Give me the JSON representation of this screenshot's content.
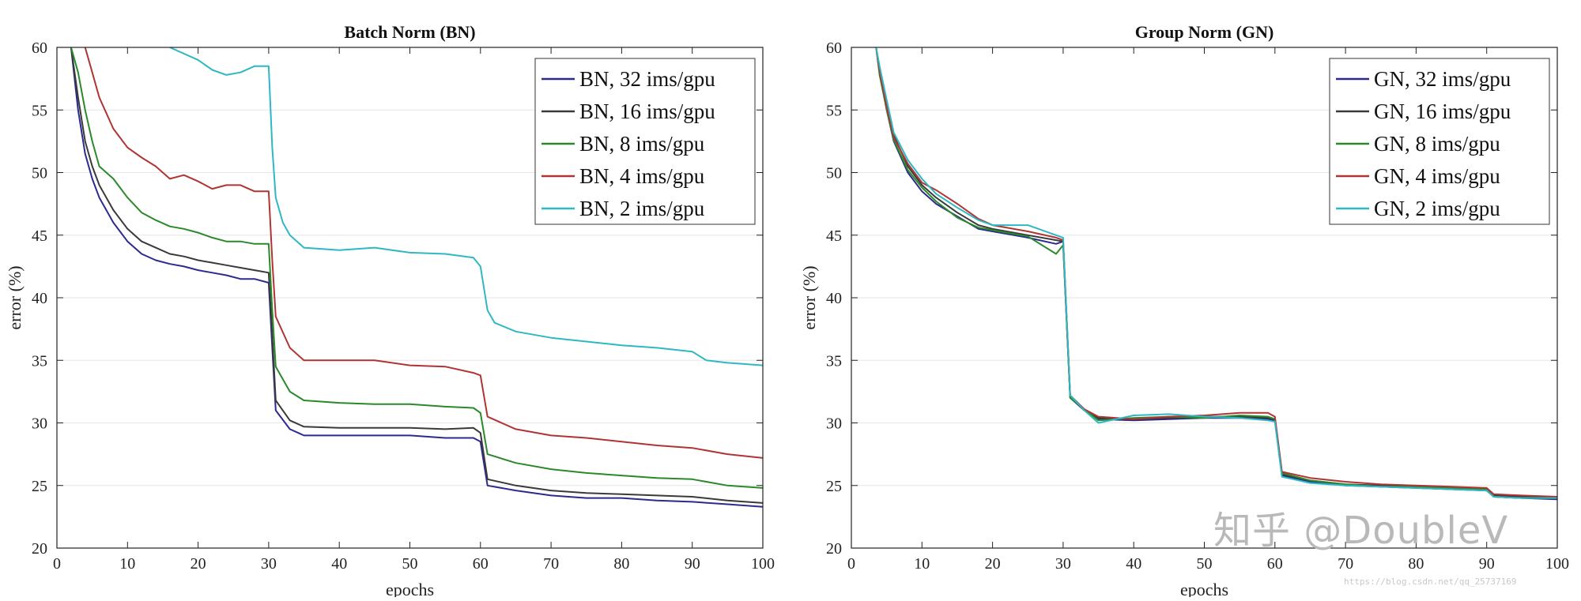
{
  "chart_data": [
    {
      "type": "line",
      "title": "Batch Norm (BN)",
      "xlabel": "epochs",
      "ylabel": "error (%)",
      "xlim": [
        0,
        100
      ],
      "ylim": [
        20,
        60
      ],
      "xticks": [
        "0",
        "10",
        "20",
        "30",
        "40",
        "50",
        "60",
        "70",
        "80",
        "90",
        "100"
      ],
      "yticks": [
        "20",
        "25",
        "30",
        "35",
        "40",
        "45",
        "50",
        "55",
        "60"
      ],
      "grid": "horizontal",
      "legend_position": "top-right",
      "series": [
        {
          "name": "BN, 32 ims/gpu",
          "color": "#2b2b8f",
          "x": [
            2,
            3,
            4,
            5,
            6,
            8,
            10,
            12,
            14,
            16,
            18,
            20,
            22,
            24,
            26,
            28,
            30,
            30.5,
            31,
            33,
            35,
            40,
            45,
            50,
            55,
            59,
            60,
            61,
            65,
            70,
            75,
            80,
            85,
            90,
            95,
            100
          ],
          "y": [
            60,
            55,
            51.5,
            49.5,
            48,
            46,
            44.5,
            43.5,
            43,
            42.7,
            42.5,
            42.2,
            42,
            41.8,
            41.5,
            41.5,
            41.2,
            36,
            31,
            29.5,
            29,
            29,
            29,
            29,
            28.8,
            28.8,
            28.5,
            25,
            24.6,
            24.2,
            24,
            24,
            23.8,
            23.7,
            23.5,
            23.3
          ]
        },
        {
          "name": "BN, 16 ims/gpu",
          "color": "#3a3a3a",
          "x": [
            2,
            3,
            4,
            5,
            6,
            8,
            10,
            12,
            14,
            16,
            18,
            20,
            22,
            24,
            26,
            28,
            30,
            30.5,
            31,
            33,
            35,
            40,
            45,
            50,
            55,
            59,
            60,
            61,
            65,
            70,
            75,
            80,
            85,
            90,
            95,
            100
          ],
          "y": [
            60,
            56,
            52.5,
            50.5,
            49,
            47,
            45.5,
            44.5,
            44,
            43.5,
            43.3,
            43,
            42.8,
            42.6,
            42.4,
            42.2,
            42,
            37,
            31.8,
            30.2,
            29.7,
            29.6,
            29.6,
            29.6,
            29.5,
            29.6,
            29.2,
            25.5,
            25,
            24.6,
            24.4,
            24.3,
            24.2,
            24.1,
            23.8,
            23.6
          ]
        },
        {
          "name": "BN, 8 ims/gpu",
          "color": "#2a8a2a",
          "x": [
            2,
            3,
            4,
            5,
            6,
            8,
            10,
            12,
            14,
            16,
            18,
            20,
            22,
            24,
            26,
            28,
            30,
            30.5,
            31,
            33,
            35,
            40,
            45,
            50,
            55,
            59,
            60,
            61,
            65,
            70,
            75,
            80,
            85,
            90,
            95,
            100
          ],
          "y": [
            60,
            58,
            55,
            52.5,
            50.5,
            49.5,
            48,
            46.8,
            46.2,
            45.7,
            45.5,
            45.2,
            44.8,
            44.5,
            44.5,
            44.3,
            44.3,
            39,
            34.5,
            32.5,
            31.8,
            31.6,
            31.5,
            31.5,
            31.3,
            31.2,
            30.8,
            27.5,
            26.8,
            26.3,
            26,
            25.8,
            25.6,
            25.5,
            25,
            24.8
          ]
        },
        {
          "name": "BN, 4 ims/gpu",
          "color": "#b03434",
          "x": [
            4,
            5,
            6,
            8,
            10,
            12,
            14,
            16,
            18,
            20,
            22,
            24,
            26,
            28,
            30,
            30.5,
            31,
            33,
            35,
            40,
            45,
            50,
            55,
            59,
            60,
            61,
            65,
            70,
            75,
            80,
            85,
            90,
            95,
            100
          ],
          "y": [
            60,
            58,
            56,
            53.5,
            52,
            51.2,
            50.5,
            49.5,
            49.8,
            49.3,
            48.7,
            49,
            49,
            48.5,
            48.5,
            43,
            38.5,
            36,
            35,
            35,
            35,
            34.6,
            34.5,
            34,
            33.8,
            30.5,
            29.5,
            29,
            28.8,
            28.5,
            28.2,
            28,
            27.5,
            27.2
          ]
        },
        {
          "name": "BN, 2 ims/gpu",
          "color": "#2fb8c4",
          "x": [
            16,
            18,
            20,
            22,
            24,
            26,
            28,
            30,
            30.5,
            31,
            32,
            33,
            35,
            40,
            45,
            50,
            55,
            59,
            60,
            61,
            62,
            65,
            70,
            75,
            80,
            85,
            90,
            92,
            95,
            100
          ],
          "y": [
            60,
            59.5,
            59,
            58.2,
            57.8,
            58,
            58.5,
            58.5,
            52,
            48,
            46,
            45,
            44,
            43.8,
            44,
            43.6,
            43.5,
            43.2,
            42.5,
            39,
            38,
            37.3,
            36.8,
            36.5,
            36.2,
            36,
            35.7,
            35,
            34.8,
            34.6
          ]
        }
      ]
    },
    {
      "type": "line",
      "title": "Group Norm (GN)",
      "xlabel": "epochs",
      "ylabel": "error (%)",
      "xlim": [
        0,
        100
      ],
      "ylim": [
        20,
        60
      ],
      "xticks": [
        "0",
        "10",
        "20",
        "30",
        "40",
        "50",
        "60",
        "70",
        "80",
        "90",
        "100"
      ],
      "yticks": [
        "20",
        "25",
        "30",
        "35",
        "40",
        "45",
        "50",
        "55",
        "60"
      ],
      "grid": "horizontal",
      "legend_position": "top-right",
      "series": [
        {
          "name": "GN, 32 ims/gpu",
          "color": "#2b2b8f",
          "x": [
            3.5,
            4,
            5,
            6,
            8,
            10,
            12,
            15,
            18,
            20,
            25,
            29,
            30,
            30.5,
            31,
            33,
            35,
            40,
            45,
            50,
            55,
            59,
            60,
            61,
            65,
            70,
            75,
            80,
            85,
            90,
            91,
            95,
            100
          ],
          "y": [
            60,
            58,
            55,
            52.5,
            50,
            48.5,
            47.5,
            46.5,
            45.5,
            45.3,
            44.8,
            44.3,
            44.5,
            38,
            32,
            31,
            30.3,
            30.2,
            30.3,
            30.4,
            30.4,
            30.3,
            30.2,
            25.8,
            25.3,
            25,
            24.9,
            24.8,
            24.7,
            24.6,
            24.1,
            24,
            23.9
          ]
        },
        {
          "name": "GN, 16 ims/gpu",
          "color": "#3a3a3a",
          "x": [
            3.5,
            4,
            5,
            6,
            8,
            10,
            12,
            15,
            18,
            20,
            25,
            29,
            30,
            30.5,
            31,
            33,
            35,
            40,
            45,
            50,
            55,
            59,
            60,
            61,
            65,
            70,
            75,
            80,
            85,
            90,
            91,
            95,
            100
          ],
          "y": [
            60,
            58.3,
            55.5,
            53,
            50.5,
            49,
            48,
            46.8,
            45.8,
            45.5,
            45,
            44.6,
            44.5,
            38.2,
            32.1,
            31,
            30.4,
            30.3,
            30.4,
            30.5,
            30.5,
            30.4,
            30.3,
            25.9,
            25.4,
            25.1,
            25,
            24.9,
            24.8,
            24.7,
            24.2,
            24.1,
            24
          ]
        },
        {
          "name": "GN, 8 ims/gpu",
          "color": "#2a8a2a",
          "x": [
            3.5,
            4,
            5,
            6,
            8,
            10,
            12,
            15,
            18,
            20,
            25,
            29,
            30,
            30.5,
            31,
            33,
            35,
            40,
            45,
            50,
            55,
            59,
            60,
            61,
            65,
            70,
            75,
            80,
            85,
            90,
            91,
            95,
            100
          ],
          "y": [
            60,
            57.8,
            55,
            52.6,
            50.2,
            48.8,
            47.7,
            46.4,
            45.6,
            45.4,
            44.9,
            43.5,
            44.2,
            38.1,
            32,
            31.1,
            30.2,
            30.4,
            30.5,
            30.4,
            30.6,
            30.5,
            30.3,
            26,
            25.4,
            25.1,
            24.9,
            24.9,
            24.8,
            24.7,
            24.1,
            24,
            24
          ]
        },
        {
          "name": "GN, 4 ims/gpu",
          "color": "#b03434",
          "x": [
            3.5,
            4,
            5,
            6,
            8,
            10,
            12,
            15,
            18,
            20,
            25,
            29,
            30,
            30.5,
            31,
            33,
            35,
            40,
            45,
            50,
            55,
            59,
            60,
            61,
            65,
            70,
            75,
            80,
            85,
            90,
            91,
            95,
            100
          ],
          "y": [
            60,
            58.1,
            55.2,
            52.8,
            50.7,
            49.2,
            48.6,
            47.5,
            46.3,
            45.8,
            45.3,
            44.8,
            44.6,
            38.3,
            32.2,
            31.1,
            30.5,
            30.3,
            30.5,
            30.6,
            30.8,
            30.8,
            30.5,
            26.1,
            25.6,
            25.3,
            25.1,
            25,
            24.9,
            24.8,
            24.3,
            24.2,
            24.1
          ]
        },
        {
          "name": "GN, 2 ims/gpu",
          "color": "#2fb8c4",
          "x": [
            3.5,
            4,
            5,
            6,
            8,
            10,
            12,
            15,
            18,
            20,
            25,
            29,
            30,
            30.5,
            31,
            33,
            35,
            40,
            45,
            50,
            55,
            59,
            60,
            61,
            65,
            70,
            75,
            80,
            85,
            90,
            91,
            95,
            100
          ],
          "y": [
            60,
            58.5,
            55.8,
            53.2,
            51,
            49.5,
            48.3,
            47.2,
            46.2,
            45.8,
            45.8,
            45,
            44.8,
            38.4,
            32.2,
            31,
            30,
            30.6,
            30.7,
            30.5,
            30.4,
            30.2,
            30.1,
            25.7,
            25.2,
            25,
            24.9,
            24.8,
            24.7,
            24.6,
            24.1,
            24,
            24
          ]
        }
      ]
    }
  ],
  "watermark": {
    "text": "知乎 @DoubleV",
    "url": "https://blog.csdn.net/qq_25737169"
  }
}
